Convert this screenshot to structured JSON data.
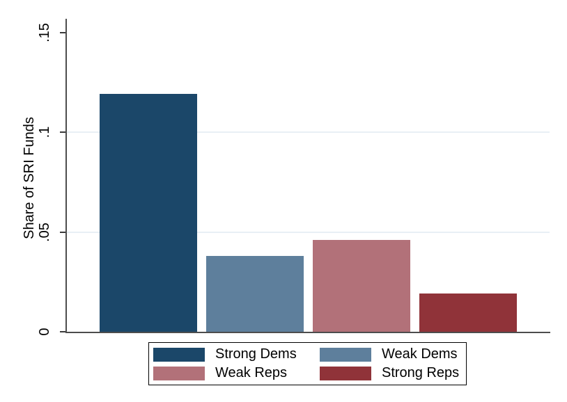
{
  "chart_data": {
    "type": "bar",
    "title": "",
    "xlabel": "",
    "ylabel": "Share of SRI Funds",
    "categories": [
      "Strong Dems",
      "Weak Dems",
      "Weak Reps",
      "Strong Reps"
    ],
    "values": [
      0.119,
      0.038,
      0.046,
      0.019
    ],
    "bar_colors": [
      "#1b4769",
      "#5e7f9c",
      "#b27179",
      "#903339"
    ],
    "ylim": [
      0,
      0.157
    ],
    "yticks": [
      {
        "value": 0,
        "label": "0"
      },
      {
        "value": 0.05,
        "label": ".05"
      },
      {
        "value": 0.1,
        "label": ".1"
      },
      {
        "value": 0.15,
        "label": ".15"
      }
    ],
    "gridlines_at": [
      0.05,
      0.1
    ],
    "grid": true,
    "legend_position": "bottom",
    "legend": [
      {
        "label": "Strong Dems",
        "color": "#1b4769"
      },
      {
        "label": "Weak Dems",
        "color": "#5e7f9c"
      },
      {
        "label": "Weak Reps",
        "color": "#b27179"
      },
      {
        "label": "Strong Reps",
        "color": "#903339"
      }
    ]
  },
  "colors": {
    "axis": "#4d4d4d",
    "tick": "#3a3a3a",
    "gridline": "#e8eff5",
    "legend_border": "#000000",
    "background": "#ffffff",
    "text": "#000000"
  }
}
